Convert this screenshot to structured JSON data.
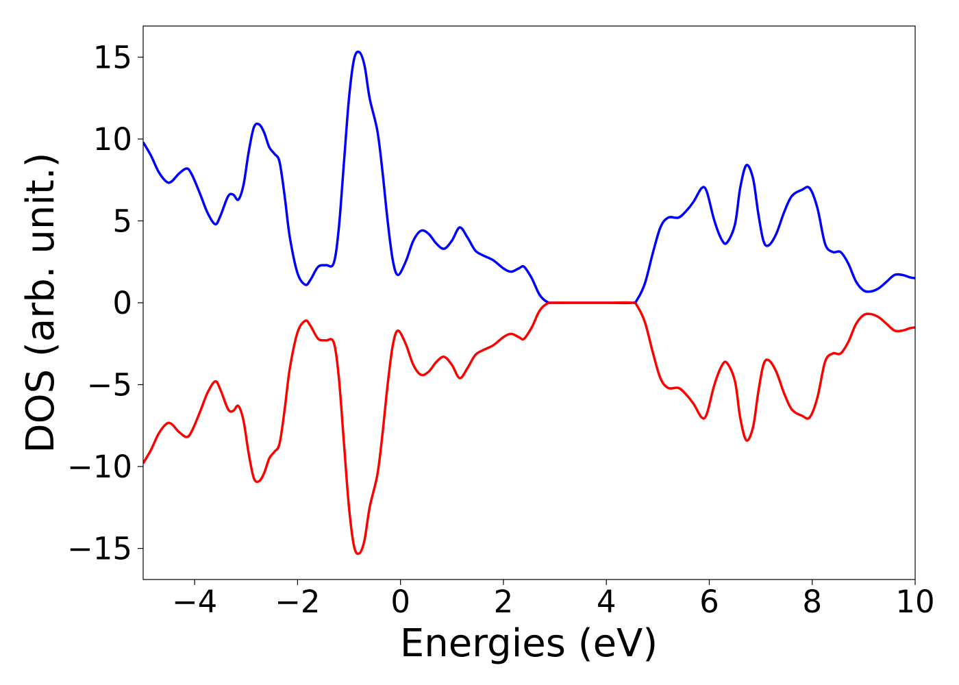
{
  "chart_data": {
    "type": "line",
    "title": "",
    "xlabel": "Energies (eV)",
    "ylabel": "DOS (arb. unit.)",
    "xlim": [
      -5,
      10
    ],
    "ylim": [
      -16.9,
      16.9
    ],
    "grid": false,
    "legend": "none",
    "x_ticks": [
      {
        "value": -4,
        "label": "−4"
      },
      {
        "value": -2,
        "label": "−2"
      },
      {
        "value": 0,
        "label": "0"
      },
      {
        "value": 2,
        "label": "2"
      },
      {
        "value": 4,
        "label": "4"
      },
      {
        "value": 6,
        "label": "6"
      },
      {
        "value": 8,
        "label": "8"
      },
      {
        "value": 10,
        "label": "10"
      }
    ],
    "y_ticks": [
      {
        "value": 15,
        "label": "15"
      },
      {
        "value": 10,
        "label": "10"
      },
      {
        "value": 5,
        "label": "5"
      },
      {
        "value": 0,
        "label": "0"
      },
      {
        "value": -5,
        "label": "−5"
      },
      {
        "value": -10,
        "label": "−10"
      },
      {
        "value": -15,
        "label": "−15"
      }
    ],
    "series": [
      {
        "color": "#0000ff",
        "mirror_of": null,
        "points": [
          [
            -5.0,
            9.8
          ],
          [
            -4.85,
            9.0
          ],
          [
            -4.7,
            8.0
          ],
          [
            -4.55,
            7.4
          ],
          [
            -4.45,
            7.4
          ],
          [
            -4.3,
            7.9
          ],
          [
            -4.15,
            8.2
          ],
          [
            -4.05,
            7.8
          ],
          [
            -3.9,
            6.7
          ],
          [
            -3.75,
            5.5
          ],
          [
            -3.6,
            4.8
          ],
          [
            -3.5,
            5.3
          ],
          [
            -3.35,
            6.5
          ],
          [
            -3.25,
            6.6
          ],
          [
            -3.15,
            6.3
          ],
          [
            -3.05,
            7.2
          ],
          [
            -2.95,
            9.2
          ],
          [
            -2.85,
            10.7
          ],
          [
            -2.75,
            10.9
          ],
          [
            -2.65,
            10.4
          ],
          [
            -2.55,
            9.5
          ],
          [
            -2.45,
            9.1
          ],
          [
            -2.35,
            8.6
          ],
          [
            -2.25,
            6.5
          ],
          [
            -2.15,
            4.0
          ],
          [
            -2.0,
            1.8
          ],
          [
            -1.85,
            1.1
          ],
          [
            -1.75,
            1.4
          ],
          [
            -1.6,
            2.2
          ],
          [
            -1.45,
            2.3
          ],
          [
            -1.3,
            2.4
          ],
          [
            -1.2,
            4.5
          ],
          [
            -1.1,
            8.5
          ],
          [
            -1.0,
            12.5
          ],
          [
            -0.9,
            14.9
          ],
          [
            -0.8,
            15.3
          ],
          [
            -0.7,
            14.5
          ],
          [
            -0.6,
            12.5
          ],
          [
            -0.45,
            10.5
          ],
          [
            -0.35,
            8.0
          ],
          [
            -0.25,
            5.0
          ],
          [
            -0.15,
            2.6
          ],
          [
            -0.05,
            1.7
          ],
          [
            0.1,
            2.5
          ],
          [
            0.25,
            3.8
          ],
          [
            0.4,
            4.4
          ],
          [
            0.55,
            4.2
          ],
          [
            0.7,
            3.6
          ],
          [
            0.85,
            3.3
          ],
          [
            1.0,
            3.8
          ],
          [
            1.15,
            4.6
          ],
          [
            1.3,
            4.0
          ],
          [
            1.45,
            3.2
          ],
          [
            1.6,
            2.9
          ],
          [
            1.8,
            2.6
          ],
          [
            2.0,
            2.1
          ],
          [
            2.15,
            1.9
          ],
          [
            2.3,
            2.1
          ],
          [
            2.4,
            2.2
          ],
          [
            2.55,
            1.5
          ],
          [
            2.7,
            0.5
          ],
          [
            2.85,
            0.05
          ],
          [
            3.0,
            0.0
          ],
          [
            3.5,
            0.0
          ],
          [
            4.0,
            0.0
          ],
          [
            4.5,
            0.0
          ],
          [
            4.6,
            0.2
          ],
          [
            4.75,
            1.2
          ],
          [
            4.9,
            3.0
          ],
          [
            5.05,
            4.6
          ],
          [
            5.2,
            5.2
          ],
          [
            5.4,
            5.2
          ],
          [
            5.55,
            5.6
          ],
          [
            5.7,
            6.2
          ],
          [
            5.85,
            7.0
          ],
          [
            5.95,
            6.8
          ],
          [
            6.1,
            5.0
          ],
          [
            6.25,
            3.8
          ],
          [
            6.35,
            3.7
          ],
          [
            6.5,
            4.8
          ],
          [
            6.6,
            7.0
          ],
          [
            6.72,
            8.4
          ],
          [
            6.85,
            7.6
          ],
          [
            6.95,
            5.5
          ],
          [
            7.05,
            3.8
          ],
          [
            7.15,
            3.5
          ],
          [
            7.3,
            4.2
          ],
          [
            7.45,
            5.5
          ],
          [
            7.6,
            6.5
          ],
          [
            7.8,
            6.9
          ],
          [
            7.95,
            7.0
          ],
          [
            8.1,
            5.8
          ],
          [
            8.25,
            3.6
          ],
          [
            8.4,
            3.1
          ],
          [
            8.55,
            3.1
          ],
          [
            8.7,
            2.4
          ],
          [
            8.85,
            1.3
          ],
          [
            9.0,
            0.75
          ],
          [
            9.15,
            0.7
          ],
          [
            9.3,
            0.9
          ],
          [
            9.45,
            1.3
          ],
          [
            9.6,
            1.7
          ],
          [
            9.75,
            1.7
          ],
          [
            9.9,
            1.55
          ],
          [
            10.0,
            1.5
          ]
        ]
      },
      {
        "color": "#ff0000",
        "mirror_of": 0,
        "points": []
      }
    ]
  }
}
